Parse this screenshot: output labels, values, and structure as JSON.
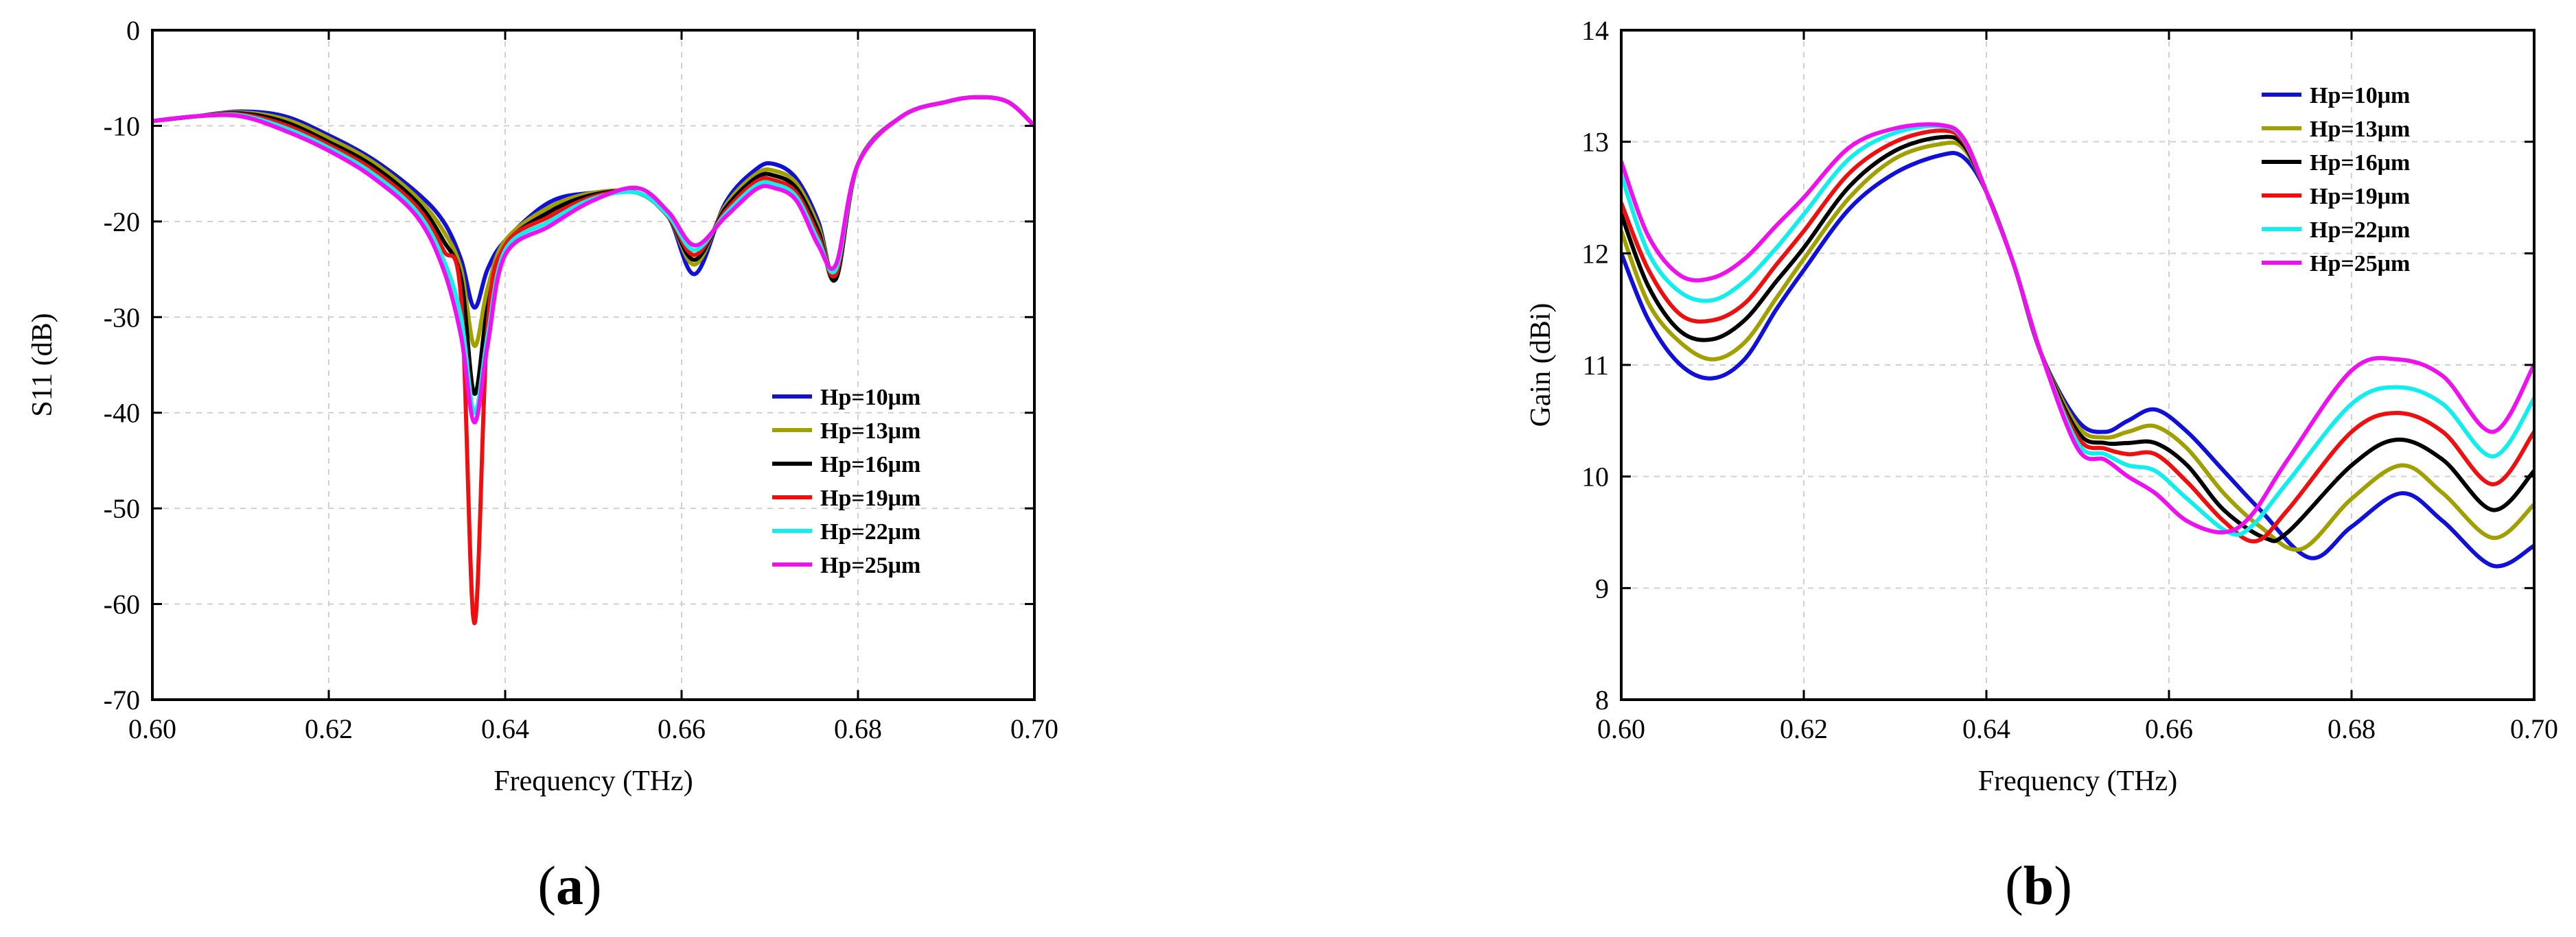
{
  "chart_data": [
    {
      "type": "line",
      "panel_label": "a",
      "title": "",
      "xlabel": "Frequency (THz)",
      "ylabel": "S11 (dB)",
      "xlim": [
        0.6,
        0.7
      ],
      "ylim": [
        -70,
        0
      ],
      "xticks": [
        0.6,
        0.62,
        0.64,
        0.66,
        0.68,
        0.7
      ],
      "xtick_labels": [
        "0.60",
        "0.62",
        "0.64",
        "0.66",
        "0.68",
        "0.70"
      ],
      "yticks": [
        0,
        -10,
        -20,
        -30,
        -40,
        -50,
        -60,
        -70
      ],
      "ytick_labels": [
        "0",
        "-10",
        "-20",
        "-30",
        "-40",
        "-50",
        "-60",
        "-70"
      ],
      "grid": true,
      "legend_position": "lower-right",
      "series": [
        {
          "name": "Hp=10μm",
          "color": "#1010d8",
          "x": [
            0.6,
            0.605,
            0.61,
            0.615,
            0.62,
            0.625,
            0.63,
            0.633,
            0.635,
            0.6365,
            0.638,
            0.64,
            0.645,
            0.65,
            0.655,
            0.6585,
            0.6615,
            0.665,
            0.6685,
            0.6705,
            0.673,
            0.6755,
            0.6775,
            0.68,
            0.685,
            0.69,
            0.6935,
            0.697,
            0.7
          ],
          "y": [
            -9.5,
            -9,
            -8.5,
            -9,
            -11,
            -13.5,
            -17,
            -20,
            -24,
            -29,
            -25,
            -22,
            -18,
            -17,
            -17,
            -19.5,
            -25.5,
            -18,
            -14.5,
            -14,
            -15.5,
            -20,
            -26,
            -14,
            -9,
            -7.5,
            -7,
            -7.5,
            -10
          ]
        },
        {
          "name": "Hp=13μm",
          "color": "#a0a000",
          "x": [
            0.6,
            0.605,
            0.61,
            0.615,
            0.62,
            0.625,
            0.63,
            0.633,
            0.635,
            0.6365,
            0.638,
            0.64,
            0.645,
            0.65,
            0.655,
            0.6585,
            0.6615,
            0.665,
            0.6685,
            0.6705,
            0.673,
            0.6755,
            0.6775,
            0.68,
            0.685,
            0.69,
            0.6935,
            0.697,
            0.7
          ],
          "y": [
            -9.5,
            -9,
            -8.6,
            -9.3,
            -11.3,
            -13.8,
            -17.5,
            -21,
            -25,
            -33,
            -27,
            -22,
            -18.5,
            -17,
            -17,
            -19.5,
            -24.5,
            -18.3,
            -15,
            -14.7,
            -16,
            -20.5,
            -26,
            -14,
            -9,
            -7.5,
            -7,
            -7.5,
            -10
          ]
        },
        {
          "name": "Hp=16μm",
          "color": "#000000",
          "x": [
            0.6,
            0.605,
            0.61,
            0.615,
            0.62,
            0.625,
            0.63,
            0.633,
            0.635,
            0.6365,
            0.638,
            0.64,
            0.645,
            0.65,
            0.655,
            0.6585,
            0.6615,
            0.665,
            0.6685,
            0.6705,
            0.673,
            0.6755,
            0.6775,
            0.68,
            0.685,
            0.69,
            0.6935,
            0.697,
            0.7
          ],
          "y": [
            -9.5,
            -9,
            -8.7,
            -9.6,
            -11.7,
            -14.2,
            -18,
            -22,
            -26,
            -38,
            -29,
            -22.5,
            -19,
            -17.2,
            -17,
            -19.5,
            -24,
            -18.6,
            -15.4,
            -15.2,
            -16.5,
            -21,
            -26,
            -14,
            -9,
            -7.5,
            -7,
            -7.5,
            -10
          ]
        },
        {
          "name": "Hp=19μm",
          "color": "#ee1010",
          "x": [
            0.6,
            0.605,
            0.61,
            0.615,
            0.62,
            0.625,
            0.63,
            0.633,
            0.635,
            0.6365,
            0.638,
            0.64,
            0.645,
            0.65,
            0.655,
            0.6585,
            0.6615,
            0.665,
            0.6685,
            0.6705,
            0.673,
            0.6755,
            0.6775,
            0.68,
            0.685,
            0.69,
            0.6935,
            0.697,
            0.7
          ],
          "y": [
            -9.5,
            -9,
            -8.8,
            -9.9,
            -12,
            -14.6,
            -18.5,
            -23,
            -28,
            -62,
            -31,
            -22.5,
            -19.5,
            -17.4,
            -17,
            -19.5,
            -23.5,
            -18.9,
            -15.8,
            -15.7,
            -17,
            -21.5,
            -25.5,
            -14,
            -9,
            -7.5,
            -7,
            -7.5,
            -10
          ]
        },
        {
          "name": "Hp=22μm",
          "color": "#10eeee",
          "x": [
            0.6,
            0.605,
            0.61,
            0.615,
            0.62,
            0.625,
            0.63,
            0.633,
            0.635,
            0.6365,
            0.638,
            0.64,
            0.645,
            0.65,
            0.655,
            0.6585,
            0.6615,
            0.665,
            0.6685,
            0.6705,
            0.673,
            0.6755,
            0.6775,
            0.68,
            0.685,
            0.69,
            0.6935,
            0.697,
            0.7
          ],
          "y": [
            -9.5,
            -9,
            -8.9,
            -10.2,
            -12.3,
            -15,
            -19,
            -24,
            -30,
            -40,
            -32,
            -23,
            -20,
            -17.6,
            -17,
            -19.4,
            -23,
            -19.2,
            -16.2,
            -16.1,
            -17.4,
            -22,
            -25,
            -14,
            -9,
            -7.5,
            -7,
            -7.5,
            -10
          ]
        },
        {
          "name": "Hp=25μm",
          "color": "#ee10ee",
          "x": [
            0.6,
            0.605,
            0.61,
            0.615,
            0.62,
            0.625,
            0.63,
            0.633,
            0.635,
            0.6365,
            0.638,
            0.64,
            0.645,
            0.65,
            0.655,
            0.6585,
            0.6615,
            0.665,
            0.6685,
            0.6705,
            0.673,
            0.6755,
            0.6775,
            0.68,
            0.685,
            0.69,
            0.6935,
            0.697,
            0.7
          ],
          "y": [
            -9.5,
            -9,
            -9,
            -10.5,
            -12.6,
            -15.4,
            -19.5,
            -25,
            -32,
            -41,
            -33,
            -23.5,
            -20.5,
            -17.8,
            -16.5,
            -19,
            -22.5,
            -19.5,
            -16.6,
            -16.5,
            -17.8,
            -22.5,
            -24.5,
            -14,
            -9,
            -7.5,
            -7,
            -7.5,
            -10
          ]
        }
      ]
    },
    {
      "type": "line",
      "panel_label": "b",
      "title": "",
      "xlabel": "Frequency (THz)",
      "ylabel": "Gain (dBi)",
      "xlim": [
        0.6,
        0.7
      ],
      "ylim": [
        8,
        14
      ],
      "xticks": [
        0.6,
        0.62,
        0.64,
        0.66,
        0.68,
        0.7
      ],
      "xtick_labels": [
        "0.60",
        "0.62",
        "0.64",
        "0.66",
        "0.68",
        "0.70"
      ],
      "yticks": [
        8,
        9,
        10,
        11,
        12,
        13,
        14
      ],
      "ytick_labels": [
        "8",
        "9",
        "10",
        "11",
        "12",
        "13",
        "14"
      ],
      "grid": true,
      "legend_position": "top-right",
      "series": [
        {
          "name": "Hp=10μm",
          "color": "#1010d8",
          "x": [
            0.6,
            0.603,
            0.6065,
            0.61,
            0.6135,
            0.617,
            0.62,
            0.625,
            0.63,
            0.635,
            0.6375,
            0.64,
            0.643,
            0.646,
            0.65,
            0.653,
            0.6555,
            0.6585,
            0.662,
            0.666,
            0.67,
            0.6755,
            0.68,
            0.6855,
            0.69,
            0.6955,
            0.7
          ],
          "y": [
            12.0,
            11.4,
            11.0,
            10.88,
            11.05,
            11.5,
            11.85,
            12.4,
            12.72,
            12.88,
            12.86,
            12.55,
            11.9,
            11.1,
            10.5,
            10.4,
            10.5,
            10.6,
            10.4,
            10.05,
            9.7,
            9.27,
            9.55,
            9.85,
            9.6,
            9.2,
            9.38
          ]
        },
        {
          "name": "Hp=13μm",
          "color": "#a0a000",
          "x": [
            0.6,
            0.603,
            0.6065,
            0.61,
            0.6135,
            0.617,
            0.62,
            0.625,
            0.63,
            0.635,
            0.6375,
            0.64,
            0.643,
            0.646,
            0.65,
            0.653,
            0.6555,
            0.6585,
            0.662,
            0.666,
            0.67,
            0.6745,
            0.68,
            0.6855,
            0.69,
            0.6955,
            0.7
          ],
          "y": [
            12.2,
            11.55,
            11.2,
            11.05,
            11.2,
            11.6,
            11.95,
            12.5,
            12.85,
            12.98,
            12.94,
            12.55,
            11.9,
            11.1,
            10.45,
            10.35,
            10.4,
            10.45,
            10.25,
            9.85,
            9.55,
            9.35,
            9.8,
            10.1,
            9.85,
            9.45,
            9.75
          ]
        },
        {
          "name": "Hp=16μm",
          "color": "#000000",
          "x": [
            0.6,
            0.603,
            0.6065,
            0.61,
            0.6135,
            0.617,
            0.62,
            0.625,
            0.63,
            0.635,
            0.6375,
            0.64,
            0.643,
            0.646,
            0.65,
            0.653,
            0.6555,
            0.6585,
            0.662,
            0.666,
            0.6705,
            0.673,
            0.68,
            0.685,
            0.69,
            0.6955,
            0.7
          ],
          "y": [
            12.35,
            11.7,
            11.3,
            11.23,
            11.4,
            11.75,
            12.05,
            12.6,
            12.92,
            13.04,
            12.97,
            12.55,
            11.9,
            11.1,
            10.4,
            10.3,
            10.3,
            10.3,
            10.1,
            9.7,
            9.45,
            9.5,
            10.1,
            10.33,
            10.15,
            9.7,
            10.05
          ]
        },
        {
          "name": "Hp=19μm",
          "color": "#ee1010",
          "x": [
            0.6,
            0.603,
            0.6065,
            0.61,
            0.6135,
            0.617,
            0.62,
            0.625,
            0.63,
            0.635,
            0.6375,
            0.64,
            0.643,
            0.646,
            0.65,
            0.653,
            0.6555,
            0.6585,
            0.662,
            0.666,
            0.6695,
            0.673,
            0.68,
            0.685,
            0.69,
            0.6955,
            0.7
          ],
          "y": [
            12.45,
            11.85,
            11.45,
            11.4,
            11.55,
            11.9,
            12.2,
            12.72,
            13.0,
            13.1,
            13.0,
            12.55,
            11.9,
            11.1,
            10.35,
            10.25,
            10.2,
            10.2,
            9.95,
            9.6,
            9.42,
            9.7,
            10.4,
            10.57,
            10.4,
            9.93,
            10.4
          ]
        },
        {
          "name": "Hp=22μm",
          "color": "#10eeee",
          "x": [
            0.6,
            0.603,
            0.6065,
            0.61,
            0.6135,
            0.617,
            0.62,
            0.625,
            0.63,
            0.635,
            0.6375,
            0.64,
            0.643,
            0.646,
            0.65,
            0.653,
            0.6555,
            0.6585,
            0.662,
            0.6665,
            0.669,
            0.673,
            0.68,
            0.685,
            0.69,
            0.6955,
            0.7
          ],
          "y": [
            12.7,
            12.0,
            11.65,
            11.58,
            11.75,
            12.05,
            12.35,
            12.85,
            13.08,
            13.14,
            13.02,
            12.55,
            11.9,
            11.1,
            10.3,
            10.2,
            10.1,
            10.05,
            9.8,
            9.5,
            9.55,
            9.95,
            10.65,
            10.8,
            10.65,
            10.18,
            10.7
          ]
        },
        {
          "name": "Hp=25μm",
          "color": "#ee10ee",
          "x": [
            0.6,
            0.603,
            0.6065,
            0.61,
            0.6135,
            0.617,
            0.62,
            0.625,
            0.63,
            0.635,
            0.6375,
            0.64,
            0.643,
            0.646,
            0.65,
            0.653,
            0.6555,
            0.6585,
            0.662,
            0.666,
            0.669,
            0.673,
            0.68,
            0.685,
            0.69,
            0.6955,
            0.7
          ],
          "y": [
            12.82,
            12.15,
            11.8,
            11.78,
            11.95,
            12.25,
            12.5,
            12.95,
            13.12,
            13.15,
            13.03,
            12.55,
            11.9,
            11.1,
            10.25,
            10.15,
            10.0,
            9.85,
            9.6,
            9.5,
            9.65,
            10.15,
            10.95,
            11.05,
            10.9,
            10.4,
            11.0
          ]
        }
      ]
    }
  ],
  "panels": {
    "a": {
      "label_open": "(",
      "label_letter": "a",
      "label_close": ")"
    },
    "b": {
      "label_open": "(",
      "label_letter": "b",
      "label_close": ")"
    }
  }
}
